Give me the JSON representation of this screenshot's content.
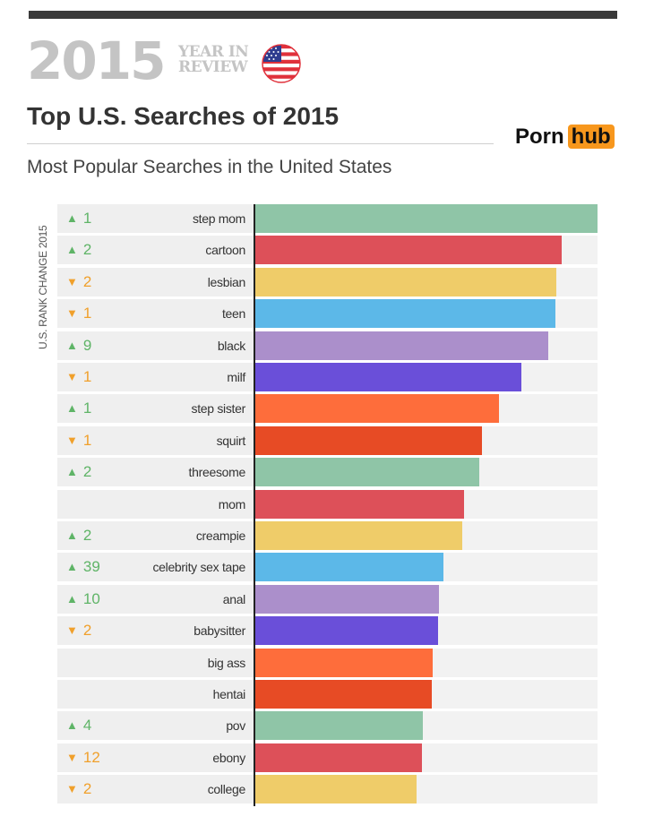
{
  "header": {
    "year": "2015",
    "year_in": "YEAR IN",
    "review": "REVIEW",
    "title": "Top U.S. Searches of 2015",
    "subtitle": "Most Popular Searches in the United States",
    "logo_left": "Porn",
    "logo_right": "hub",
    "flag_icon": "us-flag-icon"
  },
  "chart_data": {
    "type": "bar",
    "orientation": "horizontal",
    "axis_label": "U.S. RANK CHANGE 2015",
    "categories": [
      "step mom",
      "cartoon",
      "lesbian",
      "teen",
      "black",
      "milf",
      "step sister",
      "squirt",
      "threesome",
      "mom",
      "creampie",
      "celebrity sex tape",
      "anal",
      "babysitter",
      "big ass",
      "hentai",
      "pov",
      "ebony",
      "college"
    ],
    "values": [
      100,
      89.5,
      88,
      87.8,
      85.7,
      77.8,
      71.3,
      66.4,
      65.7,
      61.2,
      60.6,
      55.2,
      53.9,
      53.7,
      52.2,
      51.7,
      49.2,
      48.9,
      47.3
    ],
    "xlim": [
      0,
      100
    ],
    "rank_change": [
      {
        "dir": "up",
        "value": "1"
      },
      {
        "dir": "up",
        "value": "2"
      },
      {
        "dir": "down",
        "value": "2"
      },
      {
        "dir": "down",
        "value": "1"
      },
      {
        "dir": "up",
        "value": "9"
      },
      {
        "dir": "down",
        "value": "1"
      },
      {
        "dir": "up",
        "value": "1"
      },
      {
        "dir": "down",
        "value": "1"
      },
      {
        "dir": "up",
        "value": "2"
      },
      {
        "dir": "none",
        "value": ""
      },
      {
        "dir": "up",
        "value": "2"
      },
      {
        "dir": "up",
        "value": "39"
      },
      {
        "dir": "up",
        "value": "10"
      },
      {
        "dir": "down",
        "value": "2"
      },
      {
        "dir": "none",
        "value": ""
      },
      {
        "dir": "none",
        "value": ""
      },
      {
        "dir": "up",
        "value": "4"
      },
      {
        "dir": "down",
        "value": "12"
      },
      {
        "dir": "down",
        "value": "2"
      }
    ],
    "colors": [
      "#8fc5a7",
      "#dd5059",
      "#efcc69",
      "#5cb8e8",
      "#ab8fcb",
      "#6a4fd9",
      "#fe6d3b",
      "#e74b25"
    ],
    "up_arrow": "▲",
    "down_arrow": "▼"
  }
}
